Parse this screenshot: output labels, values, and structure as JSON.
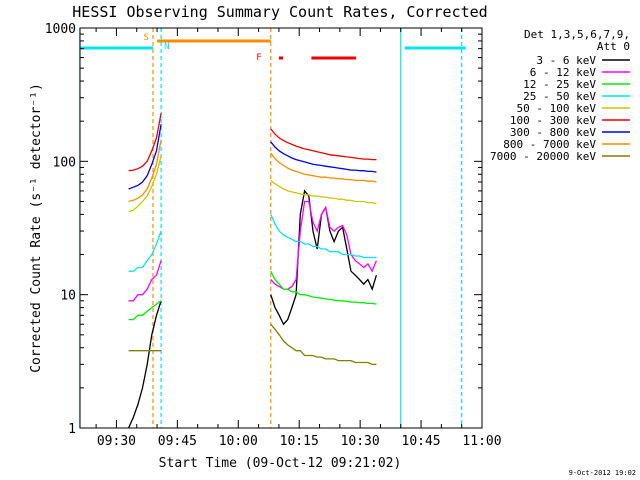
{
  "chart_data": {
    "type": "line",
    "title": "HESSI Observing Summary Count Rates, Corrected",
    "xlabel": "Start Time (09-Oct-12 09:21:02)",
    "ylabel": "Corrected Count Rate (s⁻¹ detector⁻¹)",
    "y_scale": "log",
    "ylim": [
      1,
      1000
    ],
    "xlim": [
      "09:21:02",
      "11:00:00"
    ],
    "x_ticks": [
      "09:30",
      "09:45",
      "10:00",
      "10:15",
      "10:30",
      "10:45",
      "11:00"
    ],
    "y_ticks": [
      "1",
      "10",
      "100",
      "1000"
    ],
    "legend": {
      "header": [
        "Det 1,3,5,6,7,9,",
        "Att 0"
      ],
      "placement": "right-outside",
      "entries": [
        {
          "label": "3 - 6 keV",
          "color": "#000000"
        },
        {
          "label": "6 - 12 keV",
          "color": "#ff00ff"
        },
        {
          "label": "12 - 25 keV",
          "color": "#00ee00"
        },
        {
          "label": "25 - 50 keV",
          "color": "#00e5ee"
        },
        {
          "label": "50 - 100 keV",
          "color": "#c8c800"
        },
        {
          "label": "100 - 300 keV",
          "color": "#ee0000"
        },
        {
          "label": "300 - 800 keV",
          "color": "#0000ee"
        },
        {
          "label": "800 - 7000 keV",
          "color": "#ff8c00"
        },
        {
          "label": "7000 - 20000 keV",
          "color": "#808000"
        }
      ]
    },
    "flags": [
      {
        "label": "S",
        "color": "#ff8c00",
        "x": "09:39"
      },
      {
        "label": "N",
        "color": "#00e5ee",
        "x": "09:41"
      },
      {
        "label": "F",
        "color": "#ee0000",
        "x": "10:07"
      }
    ],
    "bars": [
      {
        "name": "orange",
        "color": "#ff8c00",
        "ranges": [
          [
            "09:40",
            "10:08"
          ]
        ]
      },
      {
        "name": "red",
        "color": "#ee0000",
        "ranges": [
          [
            "10:10",
            "10:11"
          ],
          [
            "10:18",
            "10:29"
          ]
        ]
      },
      {
        "name": "cyan",
        "color": "#00e5ee",
        "ranges": [
          [
            "09:21",
            "09:39"
          ],
          [
            "10:41",
            "10:56"
          ]
        ]
      }
    ],
    "vlines": [
      {
        "x": "09:21",
        "color": "#00e5ee",
        "dashed": false
      },
      {
        "x": "09:39",
        "color": "#ff8c00",
        "dashed": true
      },
      {
        "x": "09:41",
        "color": "#00e5ee",
        "dashed": true
      },
      {
        "x": "10:08",
        "color": "#ff8c00",
        "dashed": true
      },
      {
        "x": "10:40",
        "color": "#00e5ee",
        "dashed": false
      },
      {
        "x": "10:55",
        "color": "#00e5ee",
        "dashed": true
      }
    ],
    "segments": [
      {
        "name": "before-night",
        "x_start": "09:33",
        "x_end": "09:41",
        "series": [
          {
            "band": "3 - 6 keV",
            "color": "#000000",
            "values": [
              1.0,
              1.2,
              1.5,
              2.0,
              3.0,
              5.0,
              7.0,
              9.0
            ]
          },
          {
            "band": "6 - 12 keV",
            "color": "#ff00ff",
            "values": [
              9,
              9,
              10,
              10,
              11,
              13,
              14,
              18
            ]
          },
          {
            "band": "12 - 25 keV",
            "color": "#00ee00",
            "values": [
              6.5,
              6.5,
              7,
              7,
              7.5,
              8,
              8.5,
              9
            ]
          },
          {
            "band": "25 - 50 keV",
            "color": "#00e5ee",
            "values": [
              15,
              15,
              16,
              16,
              18,
              20,
              24,
              30
            ]
          },
          {
            "band": "50 - 100 keV",
            "color": "#c8c800",
            "values": [
              42,
              43,
              46,
              50,
              55,
              65,
              80,
              110
            ]
          },
          {
            "band": "100 - 300 keV",
            "color": "#ee0000",
            "values": [
              85,
              86,
              88,
              92,
              100,
              120,
              150,
              230
            ]
          },
          {
            "band": "300 - 800 keV",
            "color": "#0000ee",
            "values": [
              62,
              64,
              66,
              70,
              78,
              95,
              120,
              190
            ]
          },
          {
            "band": "800 - 7000 keV",
            "color": "#ff8c00",
            "values": [
              50,
              51,
              53,
              56,
              62,
              75,
              95,
              145
            ]
          },
          {
            "band": "7000 - 20000 keV",
            "color": "#808000",
            "values": [
              3.8,
              3.8,
              3.8,
              3.8,
              3.8,
              3.8,
              3.8,
              3.8
            ]
          }
        ]
      },
      {
        "name": "after-night",
        "x_start": "10:08",
        "x_end": "10:34",
        "series": [
          {
            "band": "3 - 6 keV",
            "color": "#000000",
            "values": [
              10,
              8,
              7,
              6,
              6.5,
              8,
              10,
              40,
              60,
              55,
              30,
              22,
              40,
              45,
              30,
              25,
              30,
              32,
              22,
              15,
              14,
              13,
              12,
              13,
              11,
              14
            ]
          },
          {
            "band": "6 - 12 keV",
            "color": "#ff00ff",
            "values": [
              13,
              12,
              11.5,
              11,
              11,
              11.5,
              13,
              30,
              50,
              50,
              35,
              30,
              40,
              45,
              32,
              30,
              32,
              33,
              28,
              20,
              18,
              17,
              16,
              17,
              15,
              18
            ]
          },
          {
            "band": "12 - 25 keV",
            "color": "#00ee00",
            "values": [
              15,
              13,
              12,
              11,
              11,
              10.5,
              10.5,
              10,
              10,
              9.8,
              9.6,
              9.5,
              9.4,
              9.3,
              9.2,
              9.1,
              9.0,
              9.0,
              8.9,
              8.8,
              8.8,
              8.7,
              8.7,
              8.6,
              8.6,
              8.5
            ]
          },
          {
            "band": "25 - 50 keV",
            "color": "#00e5ee",
            "values": [
              40,
              34,
              30,
              28,
              27,
              26,
              25,
              25,
              24,
              24,
              23,
              23,
              22,
              22,
              21,
              21,
              21,
              20,
              20,
              20,
              19.5,
              19.5,
              19,
              19,
              19,
              19
            ]
          },
          {
            "band": "50 - 100 keV",
            "color": "#c8c800",
            "values": [
              72,
              68,
              65,
              62,
              60,
              59,
              58,
              57,
              56,
              56,
              55,
              55,
              54,
              54,
              53,
              53,
              52,
              52,
              51,
              51,
              50,
              50,
              50,
              49,
              49,
              48
            ]
          },
          {
            "band": "100 - 300 keV",
            "color": "#ee0000",
            "values": [
              175,
              160,
              150,
              143,
              138,
              134,
              130,
              127,
              124,
              122,
              120,
              118,
              116,
              114,
              112,
              111,
              110,
              109,
              108,
              107,
              106,
              105,
              104,
              104,
              103,
              103
            ]
          },
          {
            "band": "300 - 800 keV",
            "color": "#0000ee",
            "values": [
              140,
              128,
              120,
              114,
              110,
              106,
              103,
              101,
              99,
              97,
              95,
              94,
              93,
              92,
              91,
              90,
              89,
              88,
              87,
              86,
              86,
              85,
              85,
              84,
              84,
              83
            ]
          },
          {
            "band": "800 - 7000 keV",
            "color": "#ff8c00",
            "values": [
              115,
              105,
              98,
              93,
              89,
              86,
              84,
              82,
              80,
              79,
              78,
              77,
              76,
              76,
              75,
              75,
              74,
              74,
              73,
              73,
              72,
              72,
              72,
              71,
              71,
              70
            ]
          },
          {
            "band": "7000 - 20000 keV",
            "color": "#808000",
            "values": [
              6,
              5.5,
              5,
              4.5,
              4.2,
              4,
              3.8,
              3.8,
              3.5,
              3.5,
              3.5,
              3.4,
              3.4,
              3.3,
              3.3,
              3.3,
              3.2,
              3.2,
              3.2,
              3.2,
              3.1,
              3.1,
              3.1,
              3.1,
              3.0,
              3.0
            ]
          }
        ]
      }
    ],
    "timestamp": "9-Oct-2012 19:02"
  }
}
